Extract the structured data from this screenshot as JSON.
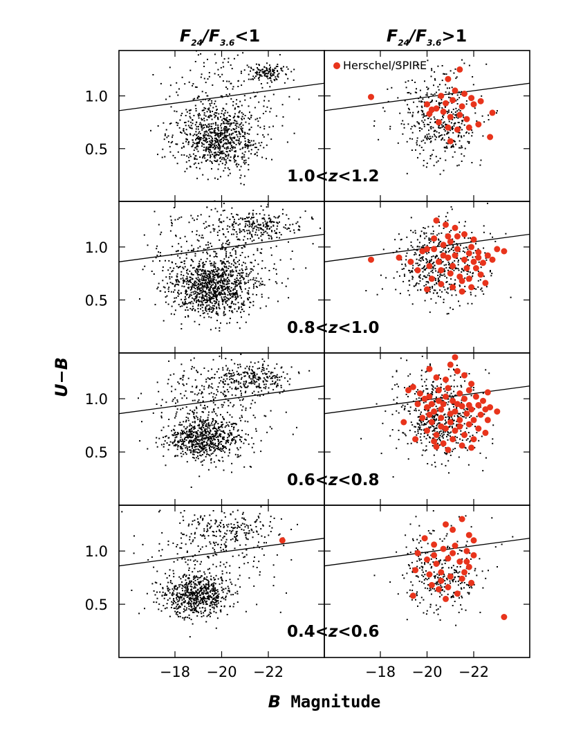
{
  "chart_data": {
    "type": "scatter",
    "title": "",
    "xlabel": "B Magnitude",
    "ylabel": "U−B",
    "xlim": [
      -15.6,
      -24.4
    ],
    "ylim": [
      0.0,
      1.43
    ],
    "xticks": [
      -18,
      -20,
      -22
    ],
    "xtick_labels": [
      "−18",
      "−20",
      "−22"
    ],
    "yticks": [
      0.5,
      1.0
    ],
    "ytick_labels": [
      "0.5",
      "1.0"
    ],
    "column_titles": [
      {
        "numer_main": "F",
        "numer_sub": "24",
        "denom_main": "F",
        "denom_sub": "3.6",
        "relation": "<1"
      },
      {
        "numer_main": "F",
        "numer_sub": "24",
        "denom_main": "F",
        "denom_sub": "3.6",
        "relation": ">1"
      }
    ],
    "row_labels": [
      {
        "lo": "1.0",
        "var": "z",
        "hi": "1.2"
      },
      {
        "lo": "0.8",
        "var": "z",
        "hi": "1.0"
      },
      {
        "lo": "0.6",
        "var": "z",
        "hi": "0.8"
      },
      {
        "lo": "0.4",
        "var": "z",
        "hi": "0.6"
      }
    ],
    "legend": {
      "label": "Herschel/SPIRE",
      "color": "#e8341c",
      "placement": "top-left of right column"
    },
    "dividing_line": {
      "x": [
        -15.6,
        -24.4
      ],
      "y": [
        0.86,
        1.12
      ]
    },
    "series_colors": {
      "galaxies": "#000000",
      "herschel": "#e8341c"
    },
    "panels": [
      {
        "row": 0,
        "col": 0,
        "galaxy_count": 1100,
        "clusters": [
          {
            "n": 720,
            "mx": -19.9,
            "sx": 0.9,
            "my": 0.58,
            "sy": 0.14
          },
          {
            "n": 130,
            "mx": -21.9,
            "sx": 0.5,
            "my": 1.22,
            "sy": 0.04
          },
          {
            "n": 250,
            "mx": -19.8,
            "sx": 1.3,
            "my": 0.95,
            "sy": 0.28
          }
        ],
        "herschel": []
      },
      {
        "row": 0,
        "col": 1,
        "galaxy_count": 430,
        "clusters": [
          {
            "n": 330,
            "mx": -20.6,
            "sx": 0.8,
            "my": 0.7,
            "sy": 0.18
          },
          {
            "n": 100,
            "mx": -20.3,
            "sx": 1.0,
            "my": 1.0,
            "sy": 0.2
          }
        ],
        "herschel": [
          {
            "x": -21.4,
            "y": 1.25
          },
          {
            "x": -17.6,
            "y": 0.99
          },
          {
            "x": -20.9,
            "y": 1.16
          },
          {
            "x": -21.2,
            "y": 1.05
          },
          {
            "x": -21.6,
            "y": 1.02
          },
          {
            "x": -21.9,
            "y": 0.98
          },
          {
            "x": -22.3,
            "y": 0.95
          },
          {
            "x": -22.8,
            "y": 0.84
          },
          {
            "x": -20.0,
            "y": 0.92
          },
          {
            "x": -20.2,
            "y": 0.87
          },
          {
            "x": -20.7,
            "y": 0.85
          },
          {
            "x": -21.0,
            "y": 0.8
          },
          {
            "x": -21.4,
            "y": 0.82
          },
          {
            "x": -21.7,
            "y": 0.78
          },
          {
            "x": -20.5,
            "y": 0.75
          },
          {
            "x": -20.9,
            "y": 0.7
          },
          {
            "x": -21.3,
            "y": 0.68
          },
          {
            "x": -22.0,
            "y": 0.92
          },
          {
            "x": -20.1,
            "y": 0.83
          },
          {
            "x": -20.6,
            "y": 1.0
          },
          {
            "x": -21.5,
            "y": 0.9
          },
          {
            "x": -22.7,
            "y": 0.61
          },
          {
            "x": -21.0,
            "y": 0.57
          },
          {
            "x": -20.4,
            "y": 0.88
          },
          {
            "x": -21.8,
            "y": 0.7
          },
          {
            "x": -20.8,
            "y": 0.93
          },
          {
            "x": -21.1,
            "y": 0.96
          },
          {
            "x": -22.2,
            "y": 0.73
          }
        ]
      },
      {
        "row": 1,
        "col": 0,
        "galaxy_count": 1500,
        "clusters": [
          {
            "n": 950,
            "mx": -19.6,
            "sx": 0.9,
            "my": 0.62,
            "sy": 0.14
          },
          {
            "n": 200,
            "mx": -21.7,
            "sx": 0.9,
            "my": 1.2,
            "sy": 0.06
          },
          {
            "n": 350,
            "mx": -19.8,
            "sx": 1.4,
            "my": 0.98,
            "sy": 0.27
          }
        ],
        "herschel": []
      },
      {
        "row": 1,
        "col": 1,
        "galaxy_count": 500,
        "clusters": [
          {
            "n": 380,
            "mx": -20.6,
            "sx": 0.9,
            "my": 0.78,
            "sy": 0.17
          },
          {
            "n": 120,
            "mx": -20.5,
            "sx": 1.1,
            "my": 1.02,
            "sy": 0.2
          }
        ],
        "herschel": [
          {
            "x": -17.6,
            "y": 0.88
          },
          {
            "x": -18.8,
            "y": 0.9
          },
          {
            "x": -19.8,
            "y": 0.96
          },
          {
            "x": -20.3,
            "y": 0.98
          },
          {
            "x": -20.7,
            "y": 1.02
          },
          {
            "x": -21.0,
            "y": 1.05
          },
          {
            "x": -21.3,
            "y": 1.1
          },
          {
            "x": -21.6,
            "y": 1.12
          },
          {
            "x": -21.9,
            "y": 1.0
          },
          {
            "x": -22.2,
            "y": 0.95
          },
          {
            "x": -22.6,
            "y": 0.92
          },
          {
            "x": -23.0,
            "y": 0.98
          },
          {
            "x": -23.3,
            "y": 0.96
          },
          {
            "x": -20.4,
            "y": 1.25
          },
          {
            "x": -20.8,
            "y": 1.21
          },
          {
            "x": -21.2,
            "y": 1.18
          },
          {
            "x": -20.1,
            "y": 0.82
          },
          {
            "x": -20.6,
            "y": 0.78
          },
          {
            "x": -21.0,
            "y": 0.75
          },
          {
            "x": -21.4,
            "y": 0.72
          },
          {
            "x": -21.8,
            "y": 0.7
          },
          {
            "x": -22.1,
            "y": 0.8
          },
          {
            "x": -22.4,
            "y": 0.85
          },
          {
            "x": -20.2,
            "y": 0.7
          },
          {
            "x": -20.6,
            "y": 0.65
          },
          {
            "x": -21.1,
            "y": 0.62
          },
          {
            "x": -21.5,
            "y": 0.68
          },
          {
            "x": -21.9,
            "y": 0.62
          },
          {
            "x": -22.3,
            "y": 0.74
          },
          {
            "x": -20.0,
            "y": 0.6
          },
          {
            "x": -19.6,
            "y": 0.78
          },
          {
            "x": -19.3,
            "y": 0.86
          },
          {
            "x": -20.9,
            "y": 0.9
          },
          {
            "x": -21.2,
            "y": 0.92
          },
          {
            "x": -21.6,
            "y": 0.88
          },
          {
            "x": -22.0,
            "y": 0.86
          },
          {
            "x": -22.5,
            "y": 0.66
          },
          {
            "x": -21.7,
            "y": 0.8
          },
          {
            "x": -20.5,
            "y": 0.86
          },
          {
            "x": -21.3,
            "y": 0.98
          },
          {
            "x": -22.0,
            "y": 1.07
          },
          {
            "x": -20.9,
            "y": 1.1
          },
          {
            "x": -20.3,
            "y": 1.08
          },
          {
            "x": -21.5,
            "y": 0.58
          },
          {
            "x": -20.7,
            "y": 0.92
          },
          {
            "x": -22.2,
            "y": 0.9
          },
          {
            "x": -21.1,
            "y": 0.82
          },
          {
            "x": -20.0,
            "y": 0.98
          },
          {
            "x": -21.8,
            "y": 0.94
          },
          {
            "x": -22.8,
            "y": 0.88
          }
        ]
      },
      {
        "row": 2,
        "col": 0,
        "galaxy_count": 1200,
        "clusters": [
          {
            "n": 650,
            "mx": -19.3,
            "sx": 0.75,
            "my": 0.63,
            "sy": 0.1
          },
          {
            "n": 220,
            "mx": -21.4,
            "sx": 0.8,
            "my": 1.2,
            "sy": 0.07
          },
          {
            "n": 330,
            "mx": -19.5,
            "sx": 1.3,
            "my": 0.95,
            "sy": 0.25
          }
        ],
        "herschel": []
      },
      {
        "row": 2,
        "col": 1,
        "galaxy_count": 550,
        "clusters": [
          {
            "n": 420,
            "mx": -20.6,
            "sx": 0.8,
            "my": 0.78,
            "sy": 0.17
          },
          {
            "n": 130,
            "mx": -20.4,
            "sx": 1.0,
            "my": 1.0,
            "sy": 0.2
          }
        ],
        "herschel": [
          {
            "x": -21.2,
            "y": 1.39
          },
          {
            "x": -21.0,
            "y": 1.32
          },
          {
            "x": -21.3,
            "y": 1.26
          },
          {
            "x": -20.4,
            "y": 1.2
          },
          {
            "x": -20.8,
            "y": 1.18
          },
          {
            "x": -21.6,
            "y": 1.22
          },
          {
            "x": -19.4,
            "y": 1.11
          },
          {
            "x": -19.7,
            "y": 1.05
          },
          {
            "x": -20.1,
            "y": 1.02
          },
          {
            "x": -20.5,
            "y": 1.08
          },
          {
            "x": -20.9,
            "y": 1.1
          },
          {
            "x": -21.4,
            "y": 1.05
          },
          {
            "x": -21.8,
            "y": 1.08
          },
          {
            "x": -22.1,
            "y": 1.02
          },
          {
            "x": -22.4,
            "y": 0.98
          },
          {
            "x": -22.7,
            "y": 0.92
          },
          {
            "x": -23.0,
            "y": 0.88
          },
          {
            "x": -19.6,
            "y": 0.95
          },
          {
            "x": -20.0,
            "y": 0.92
          },
          {
            "x": -20.3,
            "y": 0.88
          },
          {
            "x": -20.7,
            "y": 0.95
          },
          {
            "x": -21.1,
            "y": 0.98
          },
          {
            "x": -21.5,
            "y": 0.93
          },
          {
            "x": -21.9,
            "y": 0.9
          },
          {
            "x": -22.3,
            "y": 0.85
          },
          {
            "x": -22.6,
            "y": 0.8
          },
          {
            "x": -19.8,
            "y": 0.82
          },
          {
            "x": -20.2,
            "y": 0.78
          },
          {
            "x": -20.6,
            "y": 0.82
          },
          {
            "x": -21.0,
            "y": 0.86
          },
          {
            "x": -21.4,
            "y": 0.8
          },
          {
            "x": -21.8,
            "y": 0.76
          },
          {
            "x": -22.2,
            "y": 0.72
          },
          {
            "x": -22.5,
            "y": 0.68
          },
          {
            "x": -20.0,
            "y": 0.7
          },
          {
            "x": -20.4,
            "y": 0.66
          },
          {
            "x": -20.8,
            "y": 0.72
          },
          {
            "x": -21.2,
            "y": 0.7
          },
          {
            "x": -21.6,
            "y": 0.66
          },
          {
            "x": -22.0,
            "y": 0.62
          },
          {
            "x": -20.3,
            "y": 0.6
          },
          {
            "x": -20.7,
            "y": 0.58
          },
          {
            "x": -21.1,
            "y": 0.62
          },
          {
            "x": -21.5,
            "y": 0.56
          },
          {
            "x": -21.9,
            "y": 0.54
          },
          {
            "x": -19.5,
            "y": 0.62
          },
          {
            "x": -19.0,
            "y": 0.78
          },
          {
            "x": -20.9,
            "y": 0.52
          },
          {
            "x": -21.3,
            "y": 0.95
          },
          {
            "x": -20.5,
            "y": 0.98
          },
          {
            "x": -21.7,
            "y": 0.86
          },
          {
            "x": -22.2,
            "y": 0.94
          },
          {
            "x": -20.1,
            "y": 0.85
          },
          {
            "x": -21.0,
            "y": 0.78
          },
          {
            "x": -20.6,
            "y": 0.74
          },
          {
            "x": -21.4,
            "y": 0.74
          },
          {
            "x": -22.0,
            "y": 0.8
          },
          {
            "x": -19.9,
            "y": 1.0
          },
          {
            "x": -20.8,
            "y": 1.02
          },
          {
            "x": -21.6,
            "y": 1.0
          },
          {
            "x": -22.5,
            "y": 0.9
          },
          {
            "x": -20.2,
            "y": 0.95
          },
          {
            "x": -21.2,
            "y": 0.88
          },
          {
            "x": -21.8,
            "y": 0.94
          },
          {
            "x": -20.6,
            "y": 0.9
          },
          {
            "x": -19.2,
            "y": 1.08
          },
          {
            "x": -20.1,
            "y": 1.28
          },
          {
            "x": -21.9,
            "y": 1.14
          },
          {
            "x": -22.6,
            "y": 1.06
          },
          {
            "x": -20.4,
            "y": 0.55
          }
        ]
      },
      {
        "row": 3,
        "col": 0,
        "galaxy_count": 1000,
        "clusters": [
          {
            "n": 560,
            "mx": -18.9,
            "sx": 0.7,
            "my": 0.58,
            "sy": 0.09
          },
          {
            "n": 180,
            "mx": -20.6,
            "sx": 1.1,
            "my": 1.18,
            "sy": 0.09
          },
          {
            "n": 260,
            "mx": -19.2,
            "sx": 1.4,
            "my": 0.9,
            "sy": 0.27
          }
        ],
        "herschel": [
          {
            "x": -22.6,
            "y": 1.1
          }
        ]
      },
      {
        "row": 3,
        "col": 1,
        "galaxy_count": 320,
        "clusters": [
          {
            "n": 250,
            "mx": -20.6,
            "sx": 0.8,
            "my": 0.72,
            "sy": 0.15
          },
          {
            "n": 70,
            "mx": -20.4,
            "sx": 1.1,
            "my": 0.98,
            "sy": 0.2
          }
        ],
        "herschel": [
          {
            "x": -21.5,
            "y": 1.3
          },
          {
            "x": -20.8,
            "y": 1.25
          },
          {
            "x": -21.1,
            "y": 1.2
          },
          {
            "x": -21.8,
            "y": 1.15
          },
          {
            "x": -19.9,
            "y": 1.12
          },
          {
            "x": -20.3,
            "y": 1.06
          },
          {
            "x": -20.7,
            "y": 1.02
          },
          {
            "x": -21.2,
            "y": 1.05
          },
          {
            "x": -21.7,
            "y": 1.0
          },
          {
            "x": -22.0,
            "y": 0.96
          },
          {
            "x": -19.6,
            "y": 0.98
          },
          {
            "x": -20.0,
            "y": 0.92
          },
          {
            "x": -20.4,
            "y": 0.88
          },
          {
            "x": -20.9,
            "y": 0.93
          },
          {
            "x": -21.4,
            "y": 0.9
          },
          {
            "x": -21.8,
            "y": 0.85
          },
          {
            "x": -19.5,
            "y": 0.82
          },
          {
            "x": -20.1,
            "y": 0.78
          },
          {
            "x": -20.6,
            "y": 0.8
          },
          {
            "x": -21.0,
            "y": 0.76
          },
          {
            "x": -21.5,
            "y": 0.74
          },
          {
            "x": -21.9,
            "y": 0.7
          },
          {
            "x": -20.2,
            "y": 0.68
          },
          {
            "x": -20.5,
            "y": 0.64
          },
          {
            "x": -20.9,
            "y": 0.66
          },
          {
            "x": -21.3,
            "y": 0.6
          },
          {
            "x": -19.4,
            "y": 0.58
          },
          {
            "x": -20.8,
            "y": 0.55
          },
          {
            "x": -21.7,
            "y": 0.9
          },
          {
            "x": -22.0,
            "y": 1.1
          },
          {
            "x": -23.3,
            "y": 0.38
          },
          {
            "x": -20.3,
            "y": 0.96
          },
          {
            "x": -21.1,
            "y": 0.98
          },
          {
            "x": -21.6,
            "y": 0.8
          },
          {
            "x": -20.6,
            "y": 0.72
          }
        ]
      }
    ]
  }
}
